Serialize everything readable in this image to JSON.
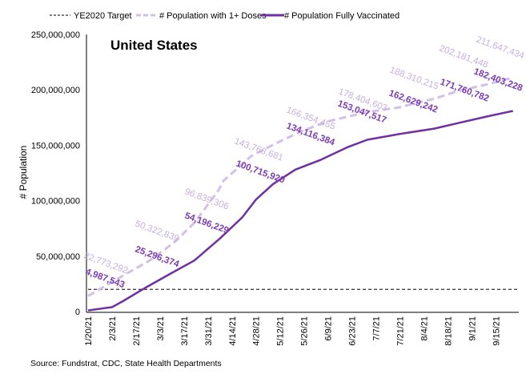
{
  "chart_data": {
    "type": "line",
    "title": "United States",
    "ylabel": "# Population",
    "xlabel": "",
    "ylim": [
      0,
      250000000
    ],
    "grid": false,
    "legend_position": "top",
    "y_ticks": [
      "0",
      "50,000,000",
      "100,000,000",
      "150,000,000",
      "200,000,000",
      "250,000,000"
    ],
    "x_ticks": [
      "1/20/21",
      "2/3/21",
      "2/17/21",
      "3/3/21",
      "3/17/21",
      "3/31/21",
      "4/14/21",
      "4/28/21",
      "5/12/21",
      "5/26/21",
      "6/9/21",
      "6/23/21",
      "7/7/21",
      "7/21/21",
      "8/4/21",
      "8/18/21",
      "9/1/21",
      "9/15/21"
    ],
    "series": [
      {
        "name": "YE2020 Target",
        "style": "dashed",
        "color": "#000000",
        "x": [
          "2021-01-20",
          "2021-09-28"
        ],
        "y": [
          20000000,
          20000000
        ]
      },
      {
        "name": "# Population with 1+ Doses",
        "style": "dashed",
        "color": "#d3c0e8",
        "x": [
          "2021-01-20",
          "2021-02-09",
          "2021-02-25",
          "2021-03-11",
          "2021-03-23",
          "2021-04-06",
          "2021-04-09",
          "2021-04-25",
          "2021-05-10",
          "2021-05-25",
          "2021-06-10",
          "2021-07-02",
          "2021-07-20",
          "2021-08-10",
          "2021-08-24",
          "2021-09-10",
          "2021-09-25"
        ],
        "y": [
          14000000,
          32000000,
          46000000,
          62000000,
          80000000,
          109000000,
          118000000,
          140000000,
          152000000,
          163000000,
          172000000,
          180000000,
          184000000,
          192000000,
          199000000,
          205000000,
          211000000
        ],
        "labels": [
          "22,773,292",
          "50,322,839",
          "96,839,306",
          "143,768,681",
          "166,354,455",
          "178,404,603",
          "188,310,215",
          "202,181,448",
          "211,647,434"
        ]
      },
      {
        "name": "# Population Fully Vaccinated",
        "style": "solid",
        "color": "#7030a0",
        "x": [
          "2021-01-20",
          "2021-02-03",
          "2021-02-09",
          "2021-02-23",
          "2021-03-10",
          "2021-03-23",
          "2021-04-07",
          "2021-04-20",
          "2021-04-28",
          "2021-05-08",
          "2021-05-21",
          "2021-06-05",
          "2021-06-20",
          "2021-07-02",
          "2021-07-20",
          "2021-08-10",
          "2021-08-24",
          "2021-09-10",
          "2021-09-25"
        ],
        "y": [
          1000000,
          4000000,
          9000000,
          22000000,
          35000000,
          46000000,
          66000000,
          85000000,
          101000000,
          115000000,
          128000000,
          137000000,
          148000000,
          155000000,
          160000000,
          165000000,
          170000000,
          176000000,
          181000000
        ],
        "labels": [
          "4,987,543",
          "25,296,374",
          "54,196,229",
          "100,715,920",
          "134,116,384",
          "153,047,517",
          "162,629,242",
          "171,760,782",
          "182,403,228"
        ]
      }
    ],
    "source": "Source: Fundstrat, CDC, State Health Departments"
  }
}
